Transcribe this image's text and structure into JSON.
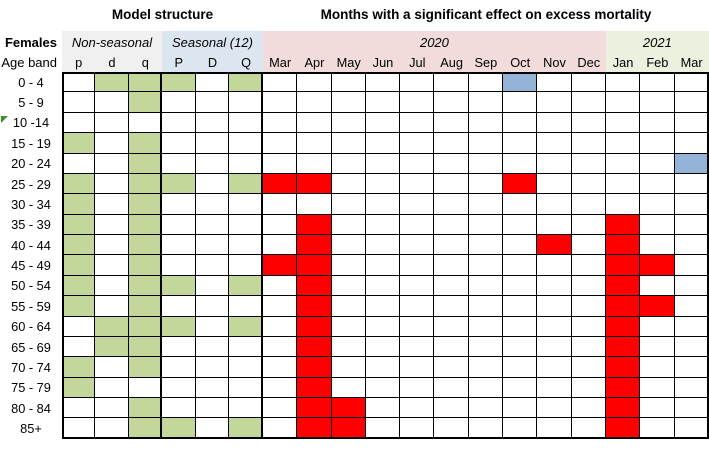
{
  "chart_data": {
    "type": "heatmap",
    "title_left": "Model structure",
    "title_right": "Months with a significant effect on excess mortality",
    "subject": "Females",
    "row_axis_label": "Age band",
    "column_groups": [
      {
        "label": "Non-seasonal",
        "bg": "#f0f0f0",
        "cols": [
          "p",
          "d",
          "q"
        ]
      },
      {
        "label": "Seasonal (12)",
        "bg": "#dce6f1",
        "cols": [
          "P",
          "D",
          "Q"
        ]
      },
      {
        "label": "2020",
        "bg": "#f2dcdb",
        "cols": [
          "Mar",
          "Apr",
          "May",
          "Jun",
          "Jul",
          "Aug",
          "Sep",
          "Oct",
          "Nov",
          "Dec"
        ]
      },
      {
        "label": "2021",
        "bg": "#ebf1de",
        "cols": [
          "Jan",
          "Feb",
          "Mar"
        ]
      }
    ],
    "cell_colors": {
      "g": "#c4d79b",
      "r": "#ff0000",
      "b": "#95b3d7"
    },
    "rows": [
      {
        "label": "0 - 4",
        "cells": [
          "",
          "g",
          "g",
          "g",
          "",
          "g",
          "",
          "",
          "",
          "",
          "",
          "",
          "",
          "b",
          "",
          "",
          "",
          "",
          ""
        ]
      },
      {
        "label": "5 - 9",
        "cells": [
          "",
          "",
          "g",
          "",
          "",
          "",
          "",
          "",
          "",
          "",
          "",
          "",
          "",
          "",
          "",
          "",
          "",
          "",
          ""
        ]
      },
      {
        "label": "10 -14",
        "cells": [
          "",
          "",
          "",
          "",
          "",
          "",
          "",
          "",
          "",
          "",
          "",
          "",
          "",
          "",
          "",
          "",
          "",
          "",
          ""
        ]
      },
      {
        "label": "15 - 19",
        "cells": [
          "g",
          "",
          "g",
          "",
          "",
          "",
          "",
          "",
          "",
          "",
          "",
          "",
          "",
          "",
          "",
          "",
          "",
          "",
          ""
        ]
      },
      {
        "label": "20 - 24",
        "cells": [
          "",
          "",
          "g",
          "",
          "",
          "",
          "",
          "",
          "",
          "",
          "",
          "",
          "",
          "",
          "",
          "",
          "",
          "",
          "b"
        ]
      },
      {
        "label": "25 - 29",
        "cells": [
          "g",
          "",
          "g",
          "g",
          "",
          "g",
          "r",
          "r",
          "",
          "",
          "",
          "",
          "",
          "r",
          "",
          "",
          "",
          "",
          ""
        ]
      },
      {
        "label": "30 - 34",
        "cells": [
          "g",
          "",
          "g",
          "",
          "",
          "",
          "",
          "",
          "",
          "",
          "",
          "",
          "",
          "",
          "",
          "",
          "",
          "",
          ""
        ]
      },
      {
        "label": "35 - 39",
        "cells": [
          "g",
          "",
          "g",
          "",
          "",
          "",
          "",
          "r",
          "",
          "",
          "",
          "",
          "",
          "",
          "",
          "",
          "r",
          "",
          ""
        ]
      },
      {
        "label": "40 - 44",
        "cells": [
          "g",
          "",
          "g",
          "",
          "",
          "",
          "",
          "r",
          "",
          "",
          "",
          "",
          "",
          "",
          "r",
          "",
          "r",
          "",
          ""
        ]
      },
      {
        "label": "45 - 49",
        "cells": [
          "g",
          "",
          "g",
          "",
          "",
          "",
          "r",
          "r",
          "",
          "",
          "",
          "",
          "",
          "",
          "",
          "",
          "r",
          "r",
          ""
        ]
      },
      {
        "label": "50 - 54",
        "cells": [
          "g",
          "",
          "g",
          "g",
          "",
          "g",
          "",
          "r",
          "",
          "",
          "",
          "",
          "",
          "",
          "",
          "",
          "r",
          "",
          ""
        ]
      },
      {
        "label": "55 - 59",
        "cells": [
          "g",
          "",
          "g",
          "",
          "",
          "",
          "",
          "r",
          "",
          "",
          "",
          "",
          "",
          "",
          "",
          "",
          "r",
          "r",
          ""
        ]
      },
      {
        "label": "60 - 64",
        "cells": [
          "",
          "g",
          "g",
          "g",
          "",
          "g",
          "",
          "r",
          "",
          "",
          "",
          "",
          "",
          "",
          "",
          "",
          "r",
          "",
          ""
        ]
      },
      {
        "label": "65 - 69",
        "cells": [
          "",
          "g",
          "g",
          "",
          "",
          "",
          "",
          "r",
          "",
          "",
          "",
          "",
          "",
          "",
          "",
          "",
          "r",
          "",
          ""
        ]
      },
      {
        "label": "70 - 74",
        "cells": [
          "g",
          "",
          "g",
          "",
          "",
          "",
          "",
          "r",
          "",
          "",
          "",
          "",
          "",
          "",
          "",
          "",
          "r",
          "",
          ""
        ]
      },
      {
        "label": "75 - 79",
        "cells": [
          "g",
          "",
          "",
          "",
          "",
          "",
          "",
          "r",
          "",
          "",
          "",
          "",
          "",
          "",
          "",
          "",
          "r",
          "",
          ""
        ]
      },
      {
        "label": "80 - 84",
        "cells": [
          "",
          "",
          "g",
          "",
          "",
          "",
          "",
          "r",
          "r",
          "",
          "",
          "",
          "",
          "",
          "",
          "",
          "r",
          "",
          ""
        ]
      },
      {
        "label": "85+",
        "cells": [
          "",
          "",
          "g",
          "g",
          "",
          "g",
          "",
          "r",
          "r",
          "",
          "",
          "",
          "",
          "",
          "",
          "",
          "r",
          "",
          ""
        ]
      }
    ]
  }
}
